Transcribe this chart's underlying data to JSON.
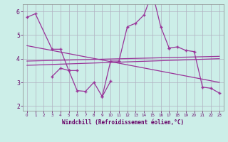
{
  "xlabel": "Windchill (Refroidissement éolien,°C)",
  "bg_color": "#cceee8",
  "line_color": "#993399",
  "ylim": [
    1.8,
    6.3
  ],
  "xlim": [
    -0.5,
    23.5
  ],
  "yticks": [
    2,
    3,
    4,
    5,
    6
  ],
  "xticks": [
    0,
    1,
    2,
    3,
    4,
    5,
    6,
    7,
    8,
    9,
    10,
    11,
    12,
    13,
    14,
    15,
    16,
    17,
    18,
    19,
    20,
    21,
    22,
    23
  ],
  "series": [
    [
      0,
      5.75
    ],
    [
      1,
      5.9
    ],
    [
      3,
      4.4
    ],
    [
      4,
      4.4
    ],
    [
      5,
      3.5
    ],
    [
      6,
      3.5
    ]
  ],
  "series2": [
    [
      3,
      3.25
    ],
    [
      4,
      3.6
    ],
    [
      5,
      3.5
    ],
    [
      6,
      2.65
    ],
    [
      7,
      2.62
    ],
    [
      8,
      3.0
    ],
    [
      9,
      2.4
    ],
    [
      10,
      3.05
    ]
  ],
  "series3": [
    [
      9,
      2.4
    ],
    [
      10,
      3.9
    ],
    [
      11,
      3.9
    ],
    [
      12,
      5.35
    ],
    [
      13,
      5.5
    ],
    [
      14,
      5.85
    ],
    [
      15,
      6.8
    ],
    [
      16,
      5.35
    ],
    [
      17,
      4.45
    ]
  ],
  "series4": [
    [
      17,
      4.45
    ],
    [
      18,
      4.5
    ],
    [
      19,
      4.35
    ],
    [
      20,
      4.3
    ],
    [
      21,
      2.8
    ],
    [
      22,
      2.75
    ],
    [
      23,
      2.55
    ]
  ],
  "trend1_x": [
    0,
    23
  ],
  "trend1_y": [
    3.9,
    4.1
  ],
  "trend2_x": [
    0,
    23
  ],
  "trend2_y": [
    4.55,
    3.0
  ],
  "trend3_x": [
    0,
    23
  ],
  "trend3_y": [
    3.72,
    4.0
  ]
}
